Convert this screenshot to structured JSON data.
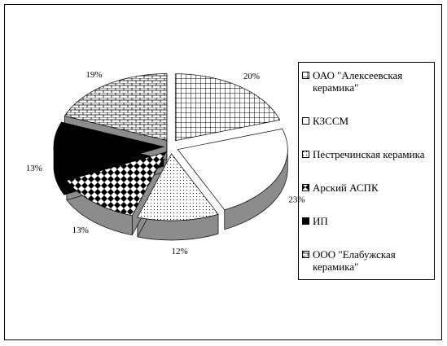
{
  "chart_data": {
    "type": "pie",
    "categories": [
      "ОАО \"Алексеевская керамика\"",
      "КЗССМ",
      "Пестречинская керамика",
      "Арский АСПК",
      "ИП",
      "ООО \"Елабужская керамика\""
    ],
    "values": [
      20,
      23,
      12,
      13,
      13,
      19
    ],
    "value_labels": [
      "20%",
      "23%",
      "12%",
      "13%",
      "13%",
      "19%"
    ],
    "legend": "right"
  }
}
